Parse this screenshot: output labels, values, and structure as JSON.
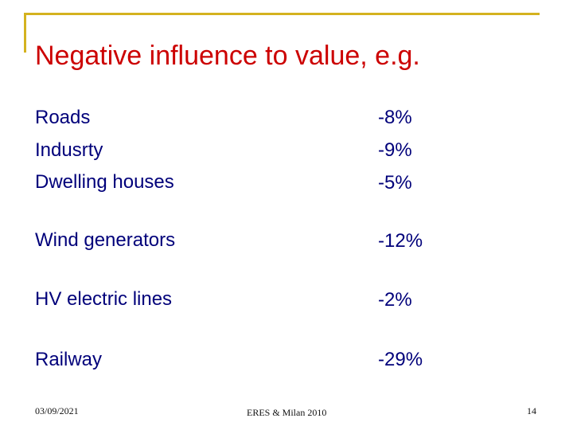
{
  "title": "Negative influence to value, e.g.",
  "items": [
    {
      "label": "Roads",
      "value": "-8%"
    },
    {
      "label": "Indusrty",
      "value": "-9%"
    },
    {
      "label": "Dwelling houses",
      "value": "-5%"
    },
    {
      "label": "Wind generators",
      "value": "-12%"
    },
    {
      "label": "HV electric lines",
      "value": "-2%"
    },
    {
      "label": "Railway",
      "value": "-29%"
    }
  ],
  "footer": {
    "date": "03/09/2021",
    "center": "ERES & Milan 2010",
    "page": "14"
  },
  "colors": {
    "title": "#cc0000",
    "body_text": "#00007a",
    "accent_frame": "#d4b21f"
  }
}
